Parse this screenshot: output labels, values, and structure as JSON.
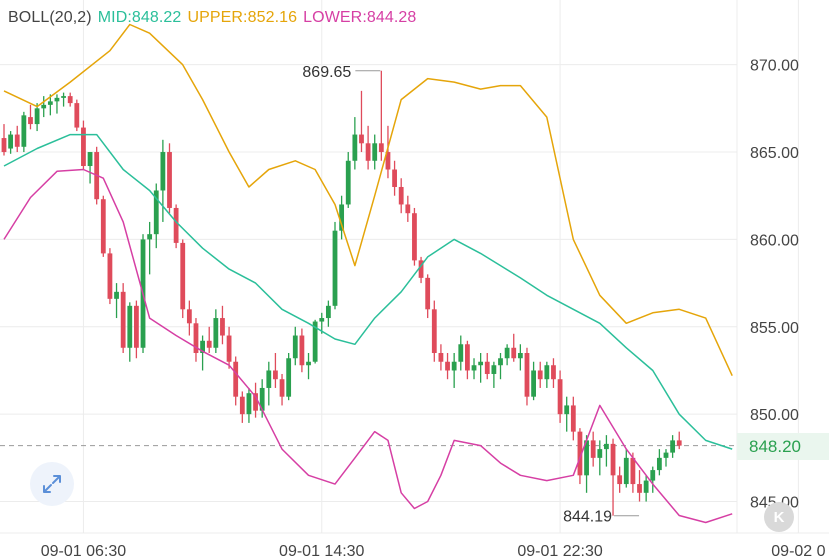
{
  "legend": {
    "indicator": "BOLL(20,2)",
    "mid_label": "MID:848.22",
    "upper_label": "UPPER:852.16",
    "lower_label": "LOWER:844.28"
  },
  "colors": {
    "mid": "#2bbf9a",
    "upper": "#e5a50a",
    "lower": "#d63fa4",
    "up": "#2aa04f",
    "down": "#df4b5b",
    "grid": "#ececec",
    "axis_text": "#444444"
  },
  "icons": {
    "fullscreen": "expand-arrows-icon",
    "kline": "k-icon"
  },
  "kline_button_label": "K",
  "last_price_label": "848.20",
  "chart_data": {
    "type": "candlestick",
    "ylim": [
      843.2,
      873.7
    ],
    "y_ticks": [
      845,
      850,
      855,
      860,
      865,
      870
    ],
    "y_tick_labels": [
      "845.00",
      "850.00",
      "855.00",
      "860.00",
      "865.00",
      "870.00"
    ],
    "x_tick_labels": [
      "09-01 06:30",
      "09-01 14:30",
      "09-01 22:30",
      "09-02 0"
    ],
    "x_tick_index": [
      12,
      48,
      84,
      120
    ],
    "grid": true,
    "last_price": 848.2,
    "annotations": [
      {
        "text": "869.65",
        "index": 57,
        "value": 869.65
      },
      {
        "text": "844.19",
        "index": 92,
        "value": 844.19
      }
    ],
    "candles": [
      [
        865.8,
        866.6,
        864.8,
        865.0
      ],
      [
        865.2,
        866.2,
        864.9,
        866.0
      ],
      [
        866.0,
        866.5,
        865.0,
        865.3
      ],
      [
        865.3,
        867.3,
        865.0,
        867.1
      ],
      [
        867.0,
        867.7,
        866.3,
        866.6
      ],
      [
        866.6,
        867.8,
        866.2,
        867.5
      ],
      [
        867.5,
        868.2,
        867.0,
        867.7
      ],
      [
        867.7,
        868.3,
        867.1,
        867.9
      ],
      [
        867.9,
        868.3,
        867.2,
        868.1
      ],
      [
        868.1,
        868.4,
        867.6,
        868.2
      ],
      [
        868.2,
        868.4,
        867.6,
        867.8
      ],
      [
        867.8,
        868.0,
        866.2,
        866.4
      ],
      [
        866.4,
        866.8,
        864.0,
        864.2
      ],
      [
        864.2,
        865.0,
        863.2,
        865.0
      ],
      [
        865.0,
        865.3,
        862.0,
        862.3
      ],
      [
        862.3,
        862.5,
        859.0,
        859.2
      ],
      [
        859.2,
        859.5,
        856.3,
        856.6
      ],
      [
        856.6,
        857.5,
        855.5,
        857.0
      ],
      [
        857.0,
        857.5,
        853.5,
        853.8
      ],
      [
        853.8,
        856.4,
        853.0,
        856.2
      ],
      [
        856.2,
        856.5,
        853.2,
        853.8
      ],
      [
        853.8,
        860.3,
        853.5,
        860.0
      ],
      [
        860.0,
        861.0,
        858.0,
        860.3
      ],
      [
        860.3,
        863.2,
        859.5,
        862.8
      ],
      [
        862.8,
        865.7,
        861.0,
        865.0
      ],
      [
        865.0,
        865.5,
        861.5,
        861.8
      ],
      [
        861.8,
        862.0,
        859.5,
        859.8
      ],
      [
        859.8,
        860.0,
        855.5,
        856.0
      ],
      [
        856.0,
        856.5,
        854.5,
        855.2
      ],
      [
        855.2,
        855.5,
        853.0,
        853.5
      ],
      [
        853.5,
        854.5,
        852.5,
        854.2
      ],
      [
        854.2,
        855.0,
        853.5,
        853.8
      ],
      [
        853.8,
        856.0,
        853.5,
        855.5
      ],
      [
        855.5,
        856.2,
        854.0,
        854.5
      ],
      [
        854.5,
        855.0,
        852.6,
        853.0
      ],
      [
        853.0,
        853.3,
        850.5,
        851.0
      ],
      [
        851.0,
        851.3,
        849.5,
        850.0
      ],
      [
        850.0,
        851.5,
        849.5,
        851.2
      ],
      [
        851.2,
        851.8,
        849.8,
        850.2
      ],
      [
        850.2,
        852.0,
        849.8,
        851.5
      ],
      [
        851.5,
        853.0,
        850.5,
        852.5
      ],
      [
        852.5,
        853.5,
        851.5,
        852.0
      ],
      [
        852.0,
        852.3,
        850.5,
        851.0
      ],
      [
        851.0,
        853.5,
        850.8,
        853.2
      ],
      [
        853.2,
        855.0,
        852.8,
        854.5
      ],
      [
        854.5,
        854.9,
        852.4,
        852.8
      ],
      [
        852.8,
        853.5,
        852.0,
        853.0
      ],
      [
        853.0,
        855.4,
        852.9,
        855.3
      ],
      [
        855.3,
        855.8,
        854.6,
        855.5
      ],
      [
        855.5,
        856.5,
        855.0,
        856.2
      ],
      [
        856.2,
        861.0,
        856.0,
        860.5
      ],
      [
        860.5,
        862.5,
        860.0,
        862.0
      ],
      [
        862.0,
        865.0,
        861.8,
        864.5
      ],
      [
        864.5,
        867.0,
        864.0,
        866.0
      ],
      [
        866.0,
        868.5,
        865.0,
        865.5
      ],
      [
        865.5,
        866.5,
        864.0,
        864.5
      ],
      [
        864.5,
        866.0,
        864.0,
        865.5
      ],
      [
        865.5,
        869.65,
        864.5,
        865.0
      ],
      [
        865.0,
        866.5,
        863.5,
        864.0
      ],
      [
        864.0,
        864.5,
        862.5,
        863.0
      ],
      [
        863.0,
        863.5,
        861.5,
        862.0
      ],
      [
        862.0,
        862.5,
        861.0,
        861.5
      ],
      [
        861.5,
        861.8,
        858.5,
        858.8
      ],
      [
        858.8,
        859.0,
        857.5,
        857.8
      ],
      [
        857.8,
        858.0,
        855.5,
        856.0
      ],
      [
        856.0,
        856.5,
        853.0,
        853.5
      ],
      [
        853.5,
        854.0,
        852.5,
        853.0
      ],
      [
        853.0,
        853.5,
        852.0,
        852.5
      ],
      [
        852.5,
        853.5,
        851.5,
        853.0
      ],
      [
        853.0,
        854.5,
        852.5,
        854.0
      ],
      [
        854.0,
        854.2,
        852.0,
        852.5
      ],
      [
        852.5,
        853.2,
        852.0,
        852.8
      ],
      [
        852.8,
        853.5,
        851.8,
        853.0
      ],
      [
        853.0,
        853.5,
        852.0,
        852.3
      ],
      [
        852.3,
        853.0,
        851.5,
        852.8
      ],
      [
        852.8,
        853.5,
        852.0,
        853.2
      ],
      [
        853.2,
        854.0,
        852.8,
        853.8
      ],
      [
        853.8,
        854.6,
        853.0,
        853.2
      ],
      [
        853.2,
        854.0,
        852.5,
        853.5
      ],
      [
        853.5,
        853.8,
        850.5,
        851.0
      ],
      [
        851.0,
        853.0,
        850.8,
        852.5
      ],
      [
        852.5,
        853.0,
        851.5,
        852.0
      ],
      [
        852.0,
        853.0,
        851.5,
        852.8
      ],
      [
        852.8,
        853.2,
        851.5,
        852.0
      ],
      [
        852.0,
        852.5,
        849.5,
        850.0
      ],
      [
        850.0,
        851.0,
        849.0,
        850.5
      ],
      [
        850.5,
        851.0,
        848.5,
        849.0
      ],
      [
        849.0,
        849.2,
        846.0,
        846.5
      ],
      [
        846.5,
        848.8,
        845.5,
        848.5
      ],
      [
        848.5,
        849.0,
        847.0,
        847.5
      ],
      [
        847.5,
        848.5,
        846.5,
        848.0
      ],
      [
        848.0,
        848.8,
        847.0,
        848.3
      ],
      [
        848.3,
        848.6,
        844.19,
        846.5
      ],
      [
        846.5,
        847.0,
        845.5,
        846.0
      ],
      [
        846.0,
        848.0,
        845.8,
        847.5
      ],
      [
        847.5,
        847.8,
        845.5,
        846.0
      ],
      [
        846.0,
        846.8,
        845.0,
        845.5
      ],
      [
        845.5,
        846.5,
        845.0,
        846.2
      ],
      [
        846.2,
        847.0,
        845.5,
        846.8
      ],
      [
        846.8,
        848.0,
        846.5,
        847.5
      ],
      [
        847.5,
        848.0,
        847.0,
        847.8
      ],
      [
        847.8,
        848.8,
        847.5,
        848.5
      ],
      [
        848.5,
        849.0,
        848.0,
        848.2
      ]
    ],
    "series": [
      {
        "name": "MID",
        "values": [
          [
            0,
            864.2
          ],
          [
            5,
            865.2
          ],
          [
            10,
            866.0
          ],
          [
            14,
            866.0
          ],
          [
            18,
            864.0
          ],
          [
            22,
            862.8
          ],
          [
            26,
            861.0
          ],
          [
            30,
            859.5
          ],
          [
            34,
            858.3
          ],
          [
            38,
            857.5
          ],
          [
            42,
            856.0
          ],
          [
            46,
            855.2
          ],
          [
            50,
            854.3
          ],
          [
            53,
            854.0
          ],
          [
            56,
            855.5
          ],
          [
            60,
            857.0
          ],
          [
            64,
            859.0
          ],
          [
            68,
            860.0
          ],
          [
            72,
            859.2
          ],
          [
            75,
            858.5
          ],
          [
            78,
            857.8
          ],
          [
            82,
            856.8
          ],
          [
            86,
            856.0
          ],
          [
            90,
            855.2
          ],
          [
            94,
            853.8
          ],
          [
            98,
            852.5
          ],
          [
            102,
            850.0
          ],
          [
            106,
            848.5
          ],
          [
            110,
            848.0
          ]
        ]
      },
      {
        "name": "UPPER",
        "values": [
          [
            0,
            868.5
          ],
          [
            5,
            867.6
          ],
          [
            10,
            869.0
          ],
          [
            16,
            870.8
          ],
          [
            19,
            872.3
          ],
          [
            22,
            871.8
          ],
          [
            27,
            870.0
          ],
          [
            30,
            868.0
          ],
          [
            34,
            865.0
          ],
          [
            37,
            863.0
          ],
          [
            40,
            864.0
          ],
          [
            44,
            864.5
          ],
          [
            47,
            864.0
          ],
          [
            50,
            862.0
          ],
          [
            53,
            858.5
          ],
          [
            56,
            862.5
          ],
          [
            60,
            868.0
          ],
          [
            64,
            869.2
          ],
          [
            68,
            869.0
          ],
          [
            72,
            868.6
          ],
          [
            75,
            868.8
          ],
          [
            78,
            868.8
          ],
          [
            82,
            867.0
          ],
          [
            86,
            860.0
          ],
          [
            90,
            856.8
          ],
          [
            94,
            855.2
          ],
          [
            98,
            855.8
          ],
          [
            102,
            856.0
          ],
          [
            106,
            855.5
          ],
          [
            110,
            852.2
          ]
        ]
      },
      {
        "name": "LOWER",
        "values": [
          [
            0,
            860.0
          ],
          [
            4,
            862.4
          ],
          [
            8,
            863.9
          ],
          [
            12,
            864.0
          ],
          [
            15,
            863.5
          ],
          [
            18,
            861.0
          ],
          [
            22,
            855.5
          ],
          [
            26,
            854.5
          ],
          [
            30,
            853.6
          ],
          [
            34,
            852.8
          ],
          [
            38,
            851.0
          ],
          [
            42,
            848.0
          ],
          [
            46,
            846.5
          ],
          [
            50,
            846.0
          ],
          [
            53,
            847.5
          ],
          [
            56,
            849.0
          ],
          [
            58,
            848.5
          ],
          [
            60,
            845.5
          ],
          [
            62,
            844.6
          ],
          [
            64,
            845.0
          ],
          [
            66,
            846.5
          ],
          [
            68,
            848.5
          ],
          [
            72,
            848.2
          ],
          [
            75,
            847.2
          ],
          [
            78,
            846.5
          ],
          [
            82,
            846.2
          ],
          [
            86,
            846.5
          ],
          [
            90,
            850.5
          ],
          [
            94,
            848.0
          ],
          [
            98,
            846.0
          ],
          [
            102,
            844.2
          ],
          [
            106,
            843.8
          ],
          [
            110,
            844.3
          ]
        ]
      }
    ]
  }
}
